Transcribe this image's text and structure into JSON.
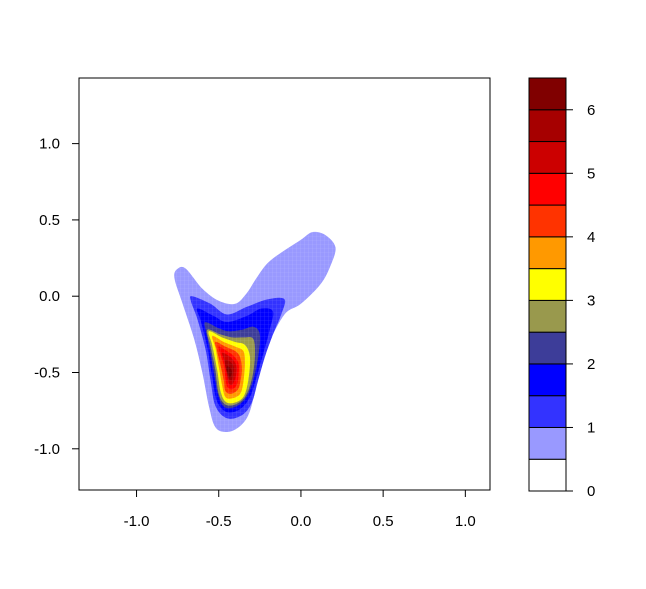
{
  "chart_data": {
    "type": "filled-contour",
    "title": "",
    "xlabel": "",
    "ylabel": "",
    "xlim": [
      -1.35,
      1.15
    ],
    "ylim": [
      -1.27,
      1.43
    ],
    "x_ticks": [
      -1.0,
      -0.5,
      0.0,
      0.5,
      1.0
    ],
    "x_tick_labels": [
      "-1.0",
      "-0.5",
      "0.0",
      "0.5",
      "1.0"
    ],
    "y_ticks": [
      -1.0,
      -0.5,
      0.0,
      0.5,
      1.0
    ],
    "y_tick_labels": [
      "-1.0",
      "-0.5",
      "0.0",
      "0.5",
      "1.0"
    ],
    "peak": {
      "x": -0.43,
      "y": -0.52,
      "value": 6.5
    },
    "levels": [
      0,
      0.5,
      1,
      1.5,
      2,
      2.5,
      3,
      3.5,
      4,
      4.5,
      5,
      5.5,
      6,
      6.5
    ],
    "colorbar": {
      "range": [
        0,
        6.5
      ],
      "tick_values": [
        0,
        1,
        2,
        3,
        4,
        5,
        6
      ],
      "tick_labels": [
        "0",
        "1",
        "2",
        "3",
        "4",
        "5",
        "6"
      ],
      "colors": [
        "#ffffff",
        "#9999ff",
        "#3333ff",
        "#0000ff",
        "#3d3d99",
        "#99994d",
        "#ffff00",
        "#ff9900",
        "#ff3300",
        "#ff0000",
        "#cc0000",
        "#a60000",
        "#800000"
      ]
    },
    "regions": [
      {
        "level": 0.5,
        "points": [
          [
            -0.75,
            0.18
          ],
          [
            -0.7,
            0.18
          ],
          [
            -0.6,
            0.05
          ],
          [
            -0.5,
            -0.03
          ],
          [
            -0.4,
            -0.05
          ],
          [
            -0.33,
            0.02
          ],
          [
            -0.27,
            0.12
          ],
          [
            -0.2,
            0.22
          ],
          [
            -0.1,
            0.3
          ],
          [
            0.0,
            0.37
          ],
          [
            0.07,
            0.42
          ],
          [
            0.15,
            0.4
          ],
          [
            0.21,
            0.32
          ],
          [
            0.18,
            0.2
          ],
          [
            0.12,
            0.08
          ],
          [
            0.0,
            -0.05
          ],
          [
            -0.1,
            -0.12
          ],
          [
            -0.2,
            -0.32
          ],
          [
            -0.25,
            -0.48
          ],
          [
            -0.28,
            -0.63
          ],
          [
            -0.32,
            -0.78
          ],
          [
            -0.38,
            -0.86
          ],
          [
            -0.45,
            -0.89
          ],
          [
            -0.52,
            -0.86
          ],
          [
            -0.56,
            -0.72
          ],
          [
            -0.6,
            -0.5
          ],
          [
            -0.65,
            -0.28
          ],
          [
            -0.72,
            -0.05
          ],
          [
            -0.77,
            0.12
          ]
        ]
      },
      {
        "level": 1.0,
        "points": [
          [
            -0.66,
            0.0
          ],
          [
            -0.55,
            -0.05
          ],
          [
            -0.45,
            -0.12
          ],
          [
            -0.33,
            -0.07
          ],
          [
            -0.2,
            -0.02
          ],
          [
            -0.1,
            -0.02
          ],
          [
            -0.12,
            -0.12
          ],
          [
            -0.17,
            -0.25
          ],
          [
            -0.22,
            -0.4
          ],
          [
            -0.26,
            -0.55
          ],
          [
            -0.3,
            -0.7
          ],
          [
            -0.36,
            -0.78
          ],
          [
            -0.45,
            -0.8
          ],
          [
            -0.52,
            -0.72
          ],
          [
            -0.55,
            -0.55
          ],
          [
            -0.58,
            -0.35
          ],
          [
            -0.63,
            -0.15
          ],
          [
            -0.67,
            -0.03
          ]
        ]
      },
      {
        "level": 1.5,
        "points": [
          [
            -0.63,
            -0.08
          ],
          [
            -0.53,
            -0.13
          ],
          [
            -0.45,
            -0.17
          ],
          [
            -0.33,
            -0.13
          ],
          [
            -0.24,
            -0.08
          ],
          [
            -0.17,
            -0.1
          ],
          [
            -0.19,
            -0.22
          ],
          [
            -0.23,
            -0.38
          ],
          [
            -0.27,
            -0.53
          ],
          [
            -0.31,
            -0.66
          ],
          [
            -0.37,
            -0.74
          ],
          [
            -0.45,
            -0.76
          ],
          [
            -0.51,
            -0.69
          ],
          [
            -0.54,
            -0.53
          ],
          [
            -0.57,
            -0.33
          ],
          [
            -0.61,
            -0.16
          ]
        ]
      },
      {
        "level": 2.0,
        "points": [
          [
            -0.58,
            -0.17
          ],
          [
            -0.5,
            -0.21
          ],
          [
            -0.44,
            -0.23
          ],
          [
            -0.36,
            -0.22
          ],
          [
            -0.29,
            -0.2
          ],
          [
            -0.25,
            -0.25
          ],
          [
            -0.26,
            -0.4
          ],
          [
            -0.29,
            -0.55
          ],
          [
            -0.33,
            -0.66
          ],
          [
            -0.39,
            -0.72
          ],
          [
            -0.46,
            -0.73
          ],
          [
            -0.5,
            -0.66
          ],
          [
            -0.53,
            -0.5
          ],
          [
            -0.56,
            -0.32
          ],
          [
            -0.58,
            -0.22
          ]
        ]
      },
      {
        "level": 2.5,
        "points": [
          [
            -0.57,
            -0.22
          ],
          [
            -0.49,
            -0.25
          ],
          [
            -0.42,
            -0.27
          ],
          [
            -0.35,
            -0.27
          ],
          [
            -0.29,
            -0.28
          ],
          [
            -0.28,
            -0.4
          ],
          [
            -0.3,
            -0.55
          ],
          [
            -0.34,
            -0.66
          ],
          [
            -0.4,
            -0.71
          ],
          [
            -0.46,
            -0.71
          ],
          [
            -0.5,
            -0.64
          ],
          [
            -0.52,
            -0.49
          ],
          [
            -0.55,
            -0.33
          ]
        ]
      },
      {
        "level": 3.0,
        "points": [
          [
            -0.56,
            -0.23
          ],
          [
            -0.48,
            -0.27
          ],
          [
            -0.4,
            -0.3
          ],
          [
            -0.34,
            -0.32
          ],
          [
            -0.31,
            -0.4
          ],
          [
            -0.32,
            -0.55
          ],
          [
            -0.35,
            -0.66
          ],
          [
            -0.41,
            -0.7
          ],
          [
            -0.46,
            -0.69
          ],
          [
            -0.49,
            -0.62
          ],
          [
            -0.51,
            -0.48
          ],
          [
            -0.54,
            -0.32
          ]
        ]
      },
      {
        "level": 3.5,
        "points": [
          [
            -0.54,
            -0.26
          ],
          [
            -0.47,
            -0.3
          ],
          [
            -0.4,
            -0.33
          ],
          [
            -0.35,
            -0.36
          ],
          [
            -0.34,
            -0.44
          ],
          [
            -0.35,
            -0.56
          ],
          [
            -0.37,
            -0.64
          ],
          [
            -0.42,
            -0.67
          ],
          [
            -0.46,
            -0.66
          ],
          [
            -0.48,
            -0.58
          ],
          [
            -0.5,
            -0.46
          ],
          [
            -0.52,
            -0.34
          ]
        ]
      },
      {
        "level": 4.0,
        "points": [
          [
            -0.52,
            -0.3
          ],
          [
            -0.46,
            -0.33
          ],
          [
            -0.4,
            -0.36
          ],
          [
            -0.37,
            -0.4
          ],
          [
            -0.36,
            -0.48
          ],
          [
            -0.37,
            -0.57
          ],
          [
            -0.39,
            -0.62
          ],
          [
            -0.43,
            -0.64
          ],
          [
            -0.46,
            -0.62
          ],
          [
            -0.47,
            -0.55
          ],
          [
            -0.49,
            -0.45
          ],
          [
            -0.51,
            -0.36
          ]
        ]
      },
      {
        "level": 4.5,
        "points": [
          [
            -0.5,
            -0.33
          ],
          [
            -0.45,
            -0.36
          ],
          [
            -0.41,
            -0.39
          ],
          [
            -0.38,
            -0.44
          ],
          [
            -0.38,
            -0.52
          ],
          [
            -0.39,
            -0.58
          ],
          [
            -0.42,
            -0.61
          ],
          [
            -0.45,
            -0.59
          ],
          [
            -0.46,
            -0.53
          ],
          [
            -0.47,
            -0.45
          ],
          [
            -0.49,
            -0.38
          ]
        ]
      },
      {
        "level": 5.0,
        "points": [
          [
            -0.48,
            -0.37
          ],
          [
            -0.44,
            -0.39
          ],
          [
            -0.41,
            -0.42
          ],
          [
            -0.39,
            -0.47
          ],
          [
            -0.4,
            -0.54
          ],
          [
            -0.42,
            -0.58
          ],
          [
            -0.44,
            -0.57
          ],
          [
            -0.45,
            -0.52
          ],
          [
            -0.46,
            -0.46
          ],
          [
            -0.47,
            -0.41
          ]
        ]
      },
      {
        "level": 5.5,
        "points": [
          [
            -0.46,
            -0.42
          ],
          [
            -0.43,
            -0.43
          ],
          [
            -0.41,
            -0.46
          ],
          [
            -0.41,
            -0.51
          ],
          [
            -0.42,
            -0.55
          ],
          [
            -0.44,
            -0.54
          ],
          [
            -0.45,
            -0.5
          ],
          [
            -0.46,
            -0.46
          ]
        ]
      },
      {
        "level": 6.0,
        "points": [
          [
            -0.45,
            -0.46
          ],
          [
            -0.43,
            -0.47
          ],
          [
            -0.42,
            -0.5
          ],
          [
            -0.43,
            -0.53
          ],
          [
            -0.44,
            -0.52
          ],
          [
            -0.45,
            -0.49
          ]
        ]
      }
    ]
  }
}
